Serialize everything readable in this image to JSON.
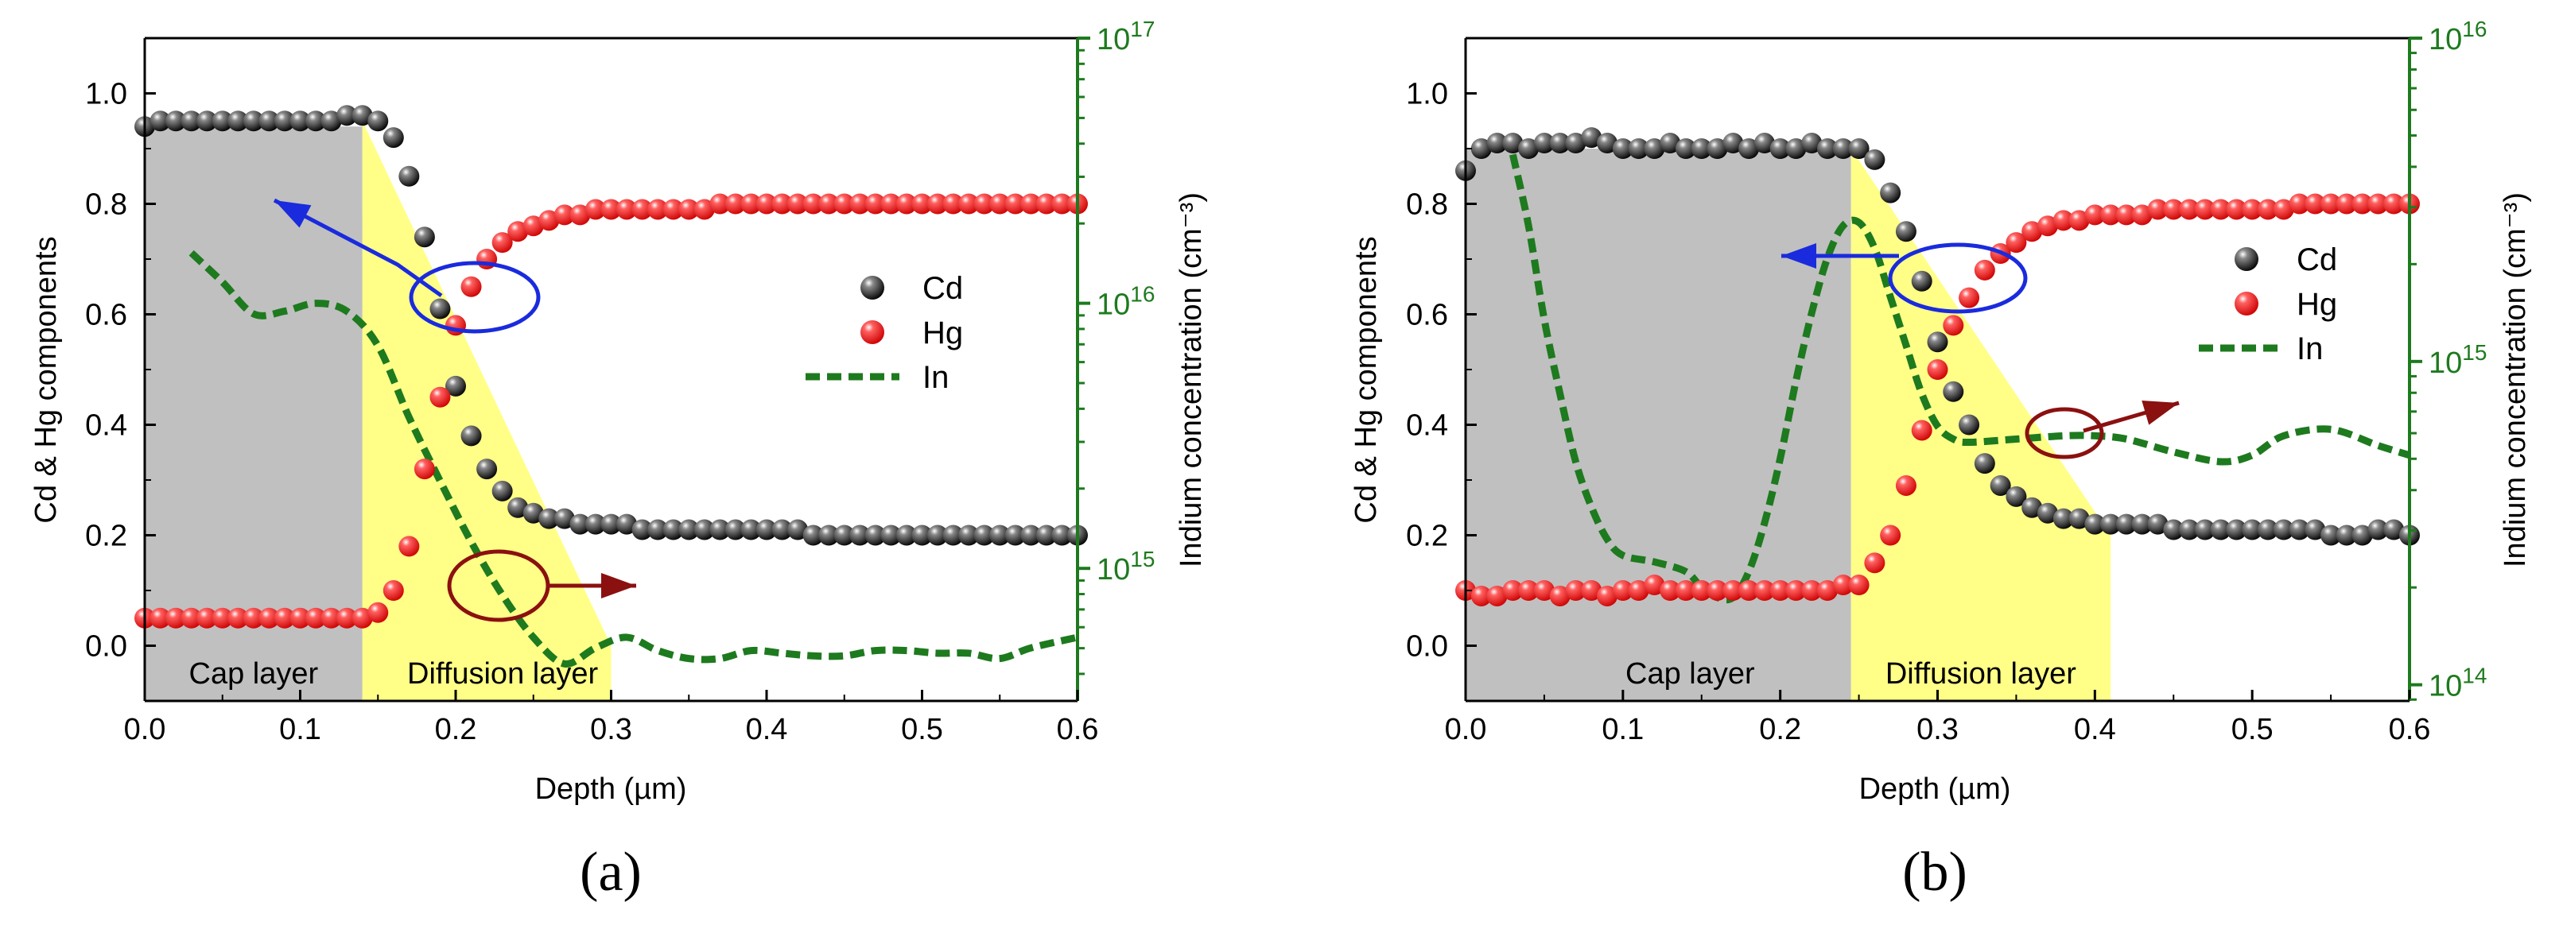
{
  "colors": {
    "cap_layer": "#c0c0c0",
    "diffusion_layer": "#ffff88",
    "cd": "#000000",
    "hg": "#ee1111",
    "in": "#1e7a1e",
    "right_axis": "#1e7a1e",
    "arrow_left": "#1a2bdd",
    "arrow_right": "#8b1010"
  },
  "chart_data": [
    {
      "panel": "(a)",
      "type": "scatter",
      "xlabel": "Depth (µm)",
      "ylabel": "Cd & Hg components",
      "y2label": "Indium concentration (cm⁻³)",
      "xlim": [
        0.0,
        0.6
      ],
      "ylim": [
        -0.1,
        1.1
      ],
      "y2lim_log10": [
        14.5,
        17
      ],
      "x_ticks": [
        "0.0",
        "0.1",
        "0.2",
        "0.3",
        "0.4",
        "0.5",
        "0.6"
      ],
      "y_ticks": [
        "0.0",
        "0.2",
        "0.4",
        "0.6",
        "0.8",
        "1.0"
      ],
      "y2_ticks": [
        {
          "base": "10",
          "exp": "15"
        },
        {
          "base": "10",
          "exp": "16"
        },
        {
          "base": "10",
          "exp": "17"
        }
      ],
      "regions": [
        {
          "label": "Cap layer",
          "x_start": 0.0,
          "x_end": 0.14,
          "top": 0.94,
          "color": "#c0c0c0"
        },
        {
          "label": "Diffusion layer",
          "x_start": 0.14,
          "x_end": 0.3,
          "top_left": 0.95,
          "top_right": 0.0,
          "color": "#ffff88"
        }
      ],
      "legend": {
        "position": "right",
        "entries": [
          "Cd",
          "Hg",
          "In"
        ]
      },
      "series": [
        {
          "name": "Cd",
          "marker": "sphere",
          "x": [
            0.0,
            0.01,
            0.02,
            0.03,
            0.04,
            0.05,
            0.06,
            0.07,
            0.08,
            0.09,
            0.1,
            0.11,
            0.12,
            0.13,
            0.14,
            0.15,
            0.16,
            0.17,
            0.18,
            0.19,
            0.2,
            0.21,
            0.22,
            0.23,
            0.24,
            0.25,
            0.26,
            0.27,
            0.28,
            0.29,
            0.3,
            0.31,
            0.32,
            0.33,
            0.34,
            0.35,
            0.36,
            0.37,
            0.38,
            0.39,
            0.4,
            0.41,
            0.42,
            0.43,
            0.44,
            0.45,
            0.46,
            0.47,
            0.48,
            0.49,
            0.5,
            0.51,
            0.52,
            0.53,
            0.54,
            0.55,
            0.56,
            0.57,
            0.58,
            0.59,
            0.6
          ],
          "y": [
            0.94,
            0.95,
            0.95,
            0.95,
            0.95,
            0.95,
            0.95,
            0.95,
            0.95,
            0.95,
            0.95,
            0.95,
            0.95,
            0.96,
            0.96,
            0.95,
            0.92,
            0.85,
            0.74,
            0.61,
            0.47,
            0.38,
            0.32,
            0.28,
            0.25,
            0.24,
            0.23,
            0.23,
            0.22,
            0.22,
            0.22,
            0.22,
            0.21,
            0.21,
            0.21,
            0.21,
            0.21,
            0.21,
            0.21,
            0.21,
            0.21,
            0.21,
            0.21,
            0.2,
            0.2,
            0.2,
            0.2,
            0.2,
            0.2,
            0.2,
            0.2,
            0.2,
            0.2,
            0.2,
            0.2,
            0.2,
            0.2,
            0.2,
            0.2,
            0.2,
            0.2
          ]
        },
        {
          "name": "Hg",
          "marker": "sphere",
          "x": [
            0.0,
            0.01,
            0.02,
            0.03,
            0.04,
            0.05,
            0.06,
            0.07,
            0.08,
            0.09,
            0.1,
            0.11,
            0.12,
            0.13,
            0.14,
            0.15,
            0.16,
            0.17,
            0.18,
            0.19,
            0.2,
            0.21,
            0.22,
            0.23,
            0.24,
            0.25,
            0.26,
            0.27,
            0.28,
            0.29,
            0.3,
            0.31,
            0.32,
            0.33,
            0.34,
            0.35,
            0.36,
            0.37,
            0.38,
            0.39,
            0.4,
            0.41,
            0.42,
            0.43,
            0.44,
            0.45,
            0.46,
            0.47,
            0.48,
            0.49,
            0.5,
            0.51,
            0.52,
            0.53,
            0.54,
            0.55,
            0.56,
            0.57,
            0.58,
            0.59,
            0.6
          ],
          "y": [
            0.05,
            0.05,
            0.05,
            0.05,
            0.05,
            0.05,
            0.05,
            0.05,
            0.05,
            0.05,
            0.05,
            0.05,
            0.05,
            0.05,
            0.05,
            0.06,
            0.1,
            0.18,
            0.32,
            0.45,
            0.58,
            0.65,
            0.7,
            0.73,
            0.75,
            0.76,
            0.77,
            0.78,
            0.78,
            0.79,
            0.79,
            0.79,
            0.79,
            0.79,
            0.79,
            0.79,
            0.79,
            0.8,
            0.8,
            0.8,
            0.8,
            0.8,
            0.8,
            0.8,
            0.8,
            0.8,
            0.8,
            0.8,
            0.8,
            0.8,
            0.8,
            0.8,
            0.8,
            0.8,
            0.8,
            0.8,
            0.8,
            0.8,
            0.8,
            0.8,
            0.8
          ]
        },
        {
          "name": "In",
          "style": "dashed",
          "axis": "right",
          "x": [
            0.03,
            0.05,
            0.07,
            0.09,
            0.11,
            0.13,
            0.15,
            0.17,
            0.19,
            0.21,
            0.23,
            0.25,
            0.27,
            0.29,
            0.31,
            0.33,
            0.35,
            0.37,
            0.39,
            0.41,
            0.43,
            0.45,
            0.47,
            0.49,
            0.51,
            0.53,
            0.55,
            0.57,
            0.6
          ],
          "y_log10": [
            16.19,
            16.08,
            15.96,
            15.97,
            16.0,
            15.97,
            15.84,
            15.57,
            15.33,
            15.1,
            14.9,
            14.74,
            14.64,
            14.7,
            14.74,
            14.69,
            14.66,
            14.66,
            14.69,
            14.68,
            14.67,
            14.67,
            14.69,
            14.69,
            14.68,
            14.68,
            14.66,
            14.7,
            14.74
          ]
        }
      ],
      "annotations": [
        {
          "type": "ellipse",
          "cx": 0.21,
          "cy": 0.63
        },
        {
          "type": "ellipse",
          "cx": 0.22,
          "cy": 0.11
        },
        {
          "type": "arrow",
          "direction": "left",
          "color": "#1a2bdd"
        },
        {
          "type": "arrow",
          "direction": "right",
          "color": "#8b1010"
        }
      ]
    },
    {
      "panel": "(b)",
      "type": "scatter",
      "xlabel": "Depth (µm)",
      "ylabel": "Cd & Hg components",
      "y2label": "Indium concentration (cm⁻³)",
      "xlim": [
        0.0,
        0.6
      ],
      "ylim": [
        -0.1,
        1.1
      ],
      "y2lim_log10": [
        13.95,
        16
      ],
      "x_ticks": [
        "0.0",
        "0.1",
        "0.2",
        "0.3",
        "0.4",
        "0.5",
        "0.6"
      ],
      "y_ticks": [
        "0.0",
        "0.2",
        "0.4",
        "0.6",
        "0.8",
        "1.0"
      ],
      "y2_ticks": [
        {
          "base": "10",
          "exp": "14"
        },
        {
          "base": "10",
          "exp": "15"
        },
        {
          "base": "10",
          "exp": "16"
        }
      ],
      "regions": [
        {
          "label": "Cap layer",
          "x_start": 0.0,
          "x_end": 0.245,
          "top": 0.9,
          "color": "#c0c0c0"
        },
        {
          "label": "Diffusion layer",
          "x_start": 0.245,
          "x_end": 0.41,
          "top_left": 0.9,
          "top_right": 0.2,
          "color": "#ffff88"
        }
      ],
      "legend": {
        "position": "right",
        "entries": [
          "Cd",
          "Hg",
          "In"
        ]
      },
      "series": [
        {
          "name": "Cd",
          "marker": "sphere",
          "x": [
            0.0,
            0.01,
            0.02,
            0.03,
            0.04,
            0.05,
            0.06,
            0.07,
            0.08,
            0.09,
            0.1,
            0.11,
            0.12,
            0.13,
            0.14,
            0.15,
            0.16,
            0.17,
            0.18,
            0.19,
            0.2,
            0.21,
            0.22,
            0.23,
            0.24,
            0.25,
            0.26,
            0.27,
            0.28,
            0.29,
            0.3,
            0.31,
            0.32,
            0.33,
            0.34,
            0.35,
            0.36,
            0.37,
            0.38,
            0.39,
            0.4,
            0.41,
            0.42,
            0.43,
            0.44,
            0.45,
            0.46,
            0.47,
            0.48,
            0.49,
            0.5,
            0.51,
            0.52,
            0.53,
            0.54,
            0.55,
            0.56,
            0.57,
            0.58,
            0.59,
            0.6
          ],
          "y": [
            0.86,
            0.9,
            0.91,
            0.91,
            0.9,
            0.91,
            0.91,
            0.91,
            0.92,
            0.91,
            0.9,
            0.9,
            0.9,
            0.91,
            0.9,
            0.9,
            0.9,
            0.91,
            0.9,
            0.91,
            0.9,
            0.9,
            0.91,
            0.9,
            0.9,
            0.9,
            0.88,
            0.82,
            0.75,
            0.66,
            0.55,
            0.46,
            0.4,
            0.33,
            0.29,
            0.27,
            0.25,
            0.24,
            0.23,
            0.23,
            0.22,
            0.22,
            0.22,
            0.22,
            0.22,
            0.21,
            0.21,
            0.21,
            0.21,
            0.21,
            0.21,
            0.21,
            0.21,
            0.21,
            0.21,
            0.2,
            0.2,
            0.2,
            0.21,
            0.21,
            0.2
          ]
        },
        {
          "name": "Hg",
          "marker": "sphere",
          "x": [
            0.0,
            0.01,
            0.02,
            0.03,
            0.04,
            0.05,
            0.06,
            0.07,
            0.08,
            0.09,
            0.1,
            0.11,
            0.12,
            0.13,
            0.14,
            0.15,
            0.16,
            0.17,
            0.18,
            0.19,
            0.2,
            0.21,
            0.22,
            0.23,
            0.24,
            0.25,
            0.26,
            0.27,
            0.28,
            0.29,
            0.3,
            0.31,
            0.32,
            0.33,
            0.34,
            0.35,
            0.36,
            0.37,
            0.38,
            0.39,
            0.4,
            0.41,
            0.42,
            0.43,
            0.44,
            0.45,
            0.46,
            0.47,
            0.48,
            0.49,
            0.5,
            0.51,
            0.52,
            0.53,
            0.54,
            0.55,
            0.56,
            0.57,
            0.58,
            0.59,
            0.6
          ],
          "y": [
            0.1,
            0.09,
            0.09,
            0.1,
            0.1,
            0.1,
            0.09,
            0.1,
            0.1,
            0.09,
            0.1,
            0.1,
            0.11,
            0.1,
            0.1,
            0.1,
            0.1,
            0.1,
            0.1,
            0.1,
            0.1,
            0.1,
            0.1,
            0.1,
            0.11,
            0.11,
            0.15,
            0.2,
            0.29,
            0.39,
            0.5,
            0.58,
            0.63,
            0.68,
            0.71,
            0.73,
            0.75,
            0.76,
            0.77,
            0.77,
            0.78,
            0.78,
            0.78,
            0.78,
            0.79,
            0.79,
            0.79,
            0.79,
            0.79,
            0.79,
            0.79,
            0.79,
            0.79,
            0.8,
            0.8,
            0.8,
            0.8,
            0.8,
            0.8,
            0.8,
            0.8
          ]
        },
        {
          "name": "In",
          "style": "dashed",
          "axis": "right",
          "x": [
            0.03,
            0.04,
            0.05,
            0.06,
            0.07,
            0.08,
            0.09,
            0.1,
            0.12,
            0.14,
            0.15,
            0.16,
            0.17,
            0.18,
            0.19,
            0.2,
            0.21,
            0.22,
            0.23,
            0.24,
            0.25,
            0.26,
            0.27,
            0.28,
            0.29,
            0.3,
            0.31,
            0.32,
            0.35,
            0.38,
            0.4,
            0.42,
            0.45,
            0.48,
            0.5,
            0.52,
            0.55,
            0.58,
            0.6
          ],
          "y_log10": [
            15.64,
            15.42,
            15.13,
            14.9,
            14.69,
            14.55,
            14.45,
            14.4,
            14.38,
            14.35,
            14.3,
            14.27,
            14.27,
            14.35,
            14.5,
            14.7,
            14.94,
            15.15,
            15.32,
            15.42,
            15.43,
            15.35,
            15.2,
            15.05,
            14.9,
            14.8,
            14.76,
            14.75,
            14.76,
            14.77,
            14.77,
            14.76,
            14.72,
            14.69,
            14.71,
            14.77,
            14.79,
            14.74,
            14.71
          ]
        }
      ],
      "annotations": [
        {
          "type": "ellipse",
          "cx": 0.3,
          "cy": 0.66
        },
        {
          "type": "ellipse",
          "cx": 0.38,
          "cy": 0.39
        },
        {
          "type": "arrow",
          "direction": "left",
          "color": "#1a2bdd"
        },
        {
          "type": "arrow",
          "direction": "right",
          "color": "#8b1010"
        }
      ]
    }
  ]
}
